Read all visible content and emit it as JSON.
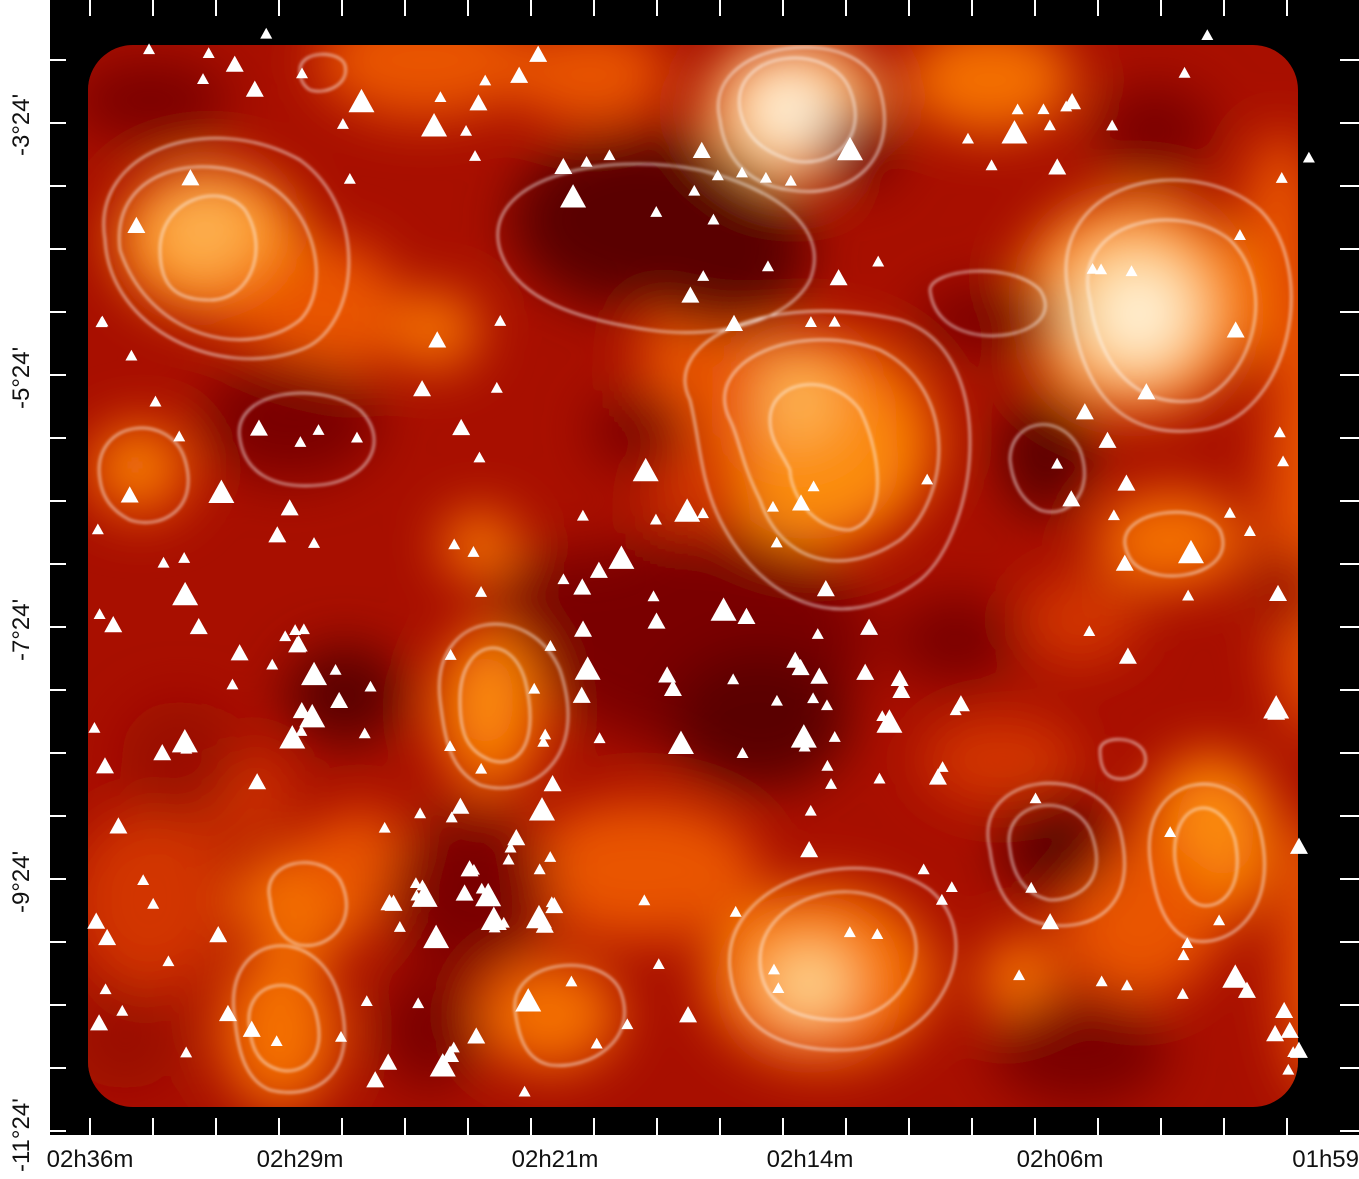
{
  "map": {
    "ra_ticks": [
      "02h36m",
      "02h29m",
      "02h21m",
      "02h14m",
      "02h06m",
      "01h59"
    ],
    "dec_ticks": [
      "-3°24'",
      "-5°24'",
      "-7°24'",
      "-9°24'",
      "-11°24'"
    ],
    "colors": {
      "frame": "#000000",
      "levels": [
        "#5a0000",
        "#7a0000",
        "#9a0a00",
        "#b81800",
        "#d23600",
        "#e95400",
        "#f47000",
        "#fb8c10",
        "#fdb050",
        "#fed690",
        "#fff1d8"
      ],
      "contour": "#ffffff",
      "markers": "#ffffff"
    }
  }
}
